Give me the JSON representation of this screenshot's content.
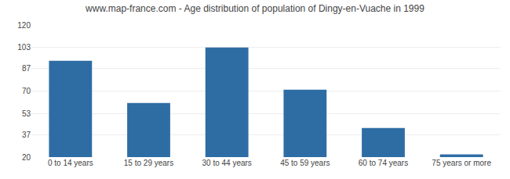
{
  "chart_data": {
    "type": "bar",
    "title": "www.map-france.com - Age distribution of population of Dingy-en-Vuache in 1999",
    "categories": [
      "0 to 14 years",
      "15 to 29 years",
      "30 to 44 years",
      "45 to 59 years",
      "60 to 74 years",
      "75 years or more"
    ],
    "values": [
      93,
      61,
      103,
      71,
      42,
      22
    ],
    "color": "#2e6da4",
    "ylim": [
      20,
      120
    ],
    "yticks": [
      20,
      37,
      53,
      70,
      87,
      103,
      120
    ],
    "grid": true
  }
}
